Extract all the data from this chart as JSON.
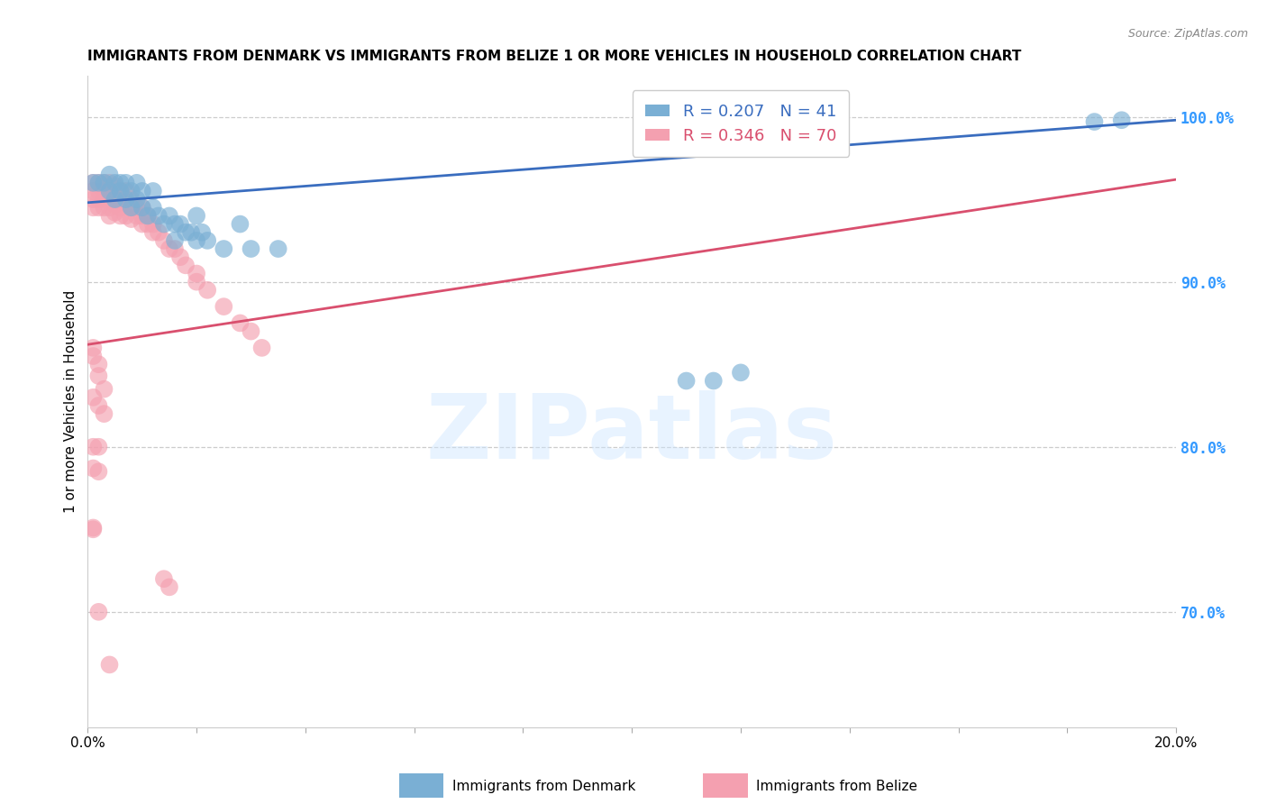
{
  "title": "IMMIGRANTS FROM DENMARK VS IMMIGRANTS FROM BELIZE 1 OR MORE VEHICLES IN HOUSEHOLD CORRELATION CHART",
  "source": "Source: ZipAtlas.com",
  "ylabel": "1 or more Vehicles in Household",
  "right_yticks": [
    70.0,
    80.0,
    90.0,
    100.0
  ],
  "xlim": [
    0.0,
    0.2
  ],
  "ylim": [
    0.63,
    1.025
  ],
  "denmark_R": 0.207,
  "denmark_N": 41,
  "belize_R": 0.346,
  "belize_N": 70,
  "denmark_color": "#7aafd4",
  "belize_color": "#f4a0b0",
  "denmark_line_color": "#3a6dbf",
  "belize_line_color": "#d94f6e",
  "background": "#ffffff",
  "denmark_x": [
    0.001,
    0.002,
    0.003,
    0.004,
    0.004,
    0.005,
    0.005,
    0.006,
    0.006,
    0.007,
    0.007,
    0.008,
    0.008,
    0.009,
    0.009,
    0.01,
    0.01,
    0.011,
    0.012,
    0.012,
    0.013,
    0.014,
    0.015,
    0.016,
    0.016,
    0.017,
    0.018,
    0.019,
    0.02,
    0.02,
    0.021,
    0.022,
    0.025,
    0.028,
    0.03,
    0.035,
    0.11,
    0.115,
    0.12,
    0.185,
    0.19
  ],
  "denmark_y": [
    0.96,
    0.96,
    0.96,
    0.965,
    0.955,
    0.96,
    0.95,
    0.96,
    0.955,
    0.96,
    0.95,
    0.955,
    0.945,
    0.96,
    0.95,
    0.955,
    0.945,
    0.94,
    0.955,
    0.945,
    0.94,
    0.935,
    0.94,
    0.935,
    0.925,
    0.935,
    0.93,
    0.93,
    0.94,
    0.925,
    0.93,
    0.925,
    0.92,
    0.935,
    0.92,
    0.92,
    0.84,
    0.84,
    0.845,
    0.997,
    0.998
  ],
  "belize_x": [
    0.001,
    0.001,
    0.001,
    0.001,
    0.002,
    0.002,
    0.002,
    0.002,
    0.003,
    0.003,
    0.003,
    0.003,
    0.004,
    0.004,
    0.004,
    0.004,
    0.005,
    0.005,
    0.005,
    0.005,
    0.006,
    0.006,
    0.006,
    0.006,
    0.007,
    0.007,
    0.007,
    0.008,
    0.008,
    0.008,
    0.009,
    0.009,
    0.01,
    0.01,
    0.01,
    0.011,
    0.011,
    0.012,
    0.012,
    0.013,
    0.014,
    0.015,
    0.016,
    0.017,
    0.018,
    0.02,
    0.02,
    0.022,
    0.025,
    0.028,
    0.03,
    0.032,
    0.001,
    0.001,
    0.002,
    0.002,
    0.003,
    0.001,
    0.002,
    0.003,
    0.001,
    0.002,
    0.001,
    0.002,
    0.001,
    0.001,
    0.014,
    0.015,
    0.002,
    0.004
  ],
  "belize_y": [
    0.96,
    0.955,
    0.95,
    0.945,
    0.96,
    0.955,
    0.95,
    0.945,
    0.96,
    0.955,
    0.95,
    0.945,
    0.96,
    0.955,
    0.945,
    0.94,
    0.958,
    0.952,
    0.947,
    0.942,
    0.955,
    0.95,
    0.945,
    0.94,
    0.955,
    0.948,
    0.94,
    0.95,
    0.945,
    0.938,
    0.945,
    0.94,
    0.945,
    0.94,
    0.935,
    0.94,
    0.935,
    0.935,
    0.93,
    0.93,
    0.925,
    0.92,
    0.92,
    0.915,
    0.91,
    0.905,
    0.9,
    0.895,
    0.885,
    0.875,
    0.87,
    0.86,
    0.86,
    0.855,
    0.85,
    0.843,
    0.835,
    0.83,
    0.825,
    0.82,
    0.8,
    0.8,
    0.787,
    0.785,
    0.751,
    0.75,
    0.72,
    0.715,
    0.7,
    0.668
  ],
  "denmark_trend_x": [
    0.0,
    0.2
  ],
  "denmark_trend_y": [
    0.948,
    0.998
  ],
  "belize_trend_x": [
    0.0,
    0.2
  ],
  "belize_trend_y": [
    0.862,
    0.962
  ]
}
